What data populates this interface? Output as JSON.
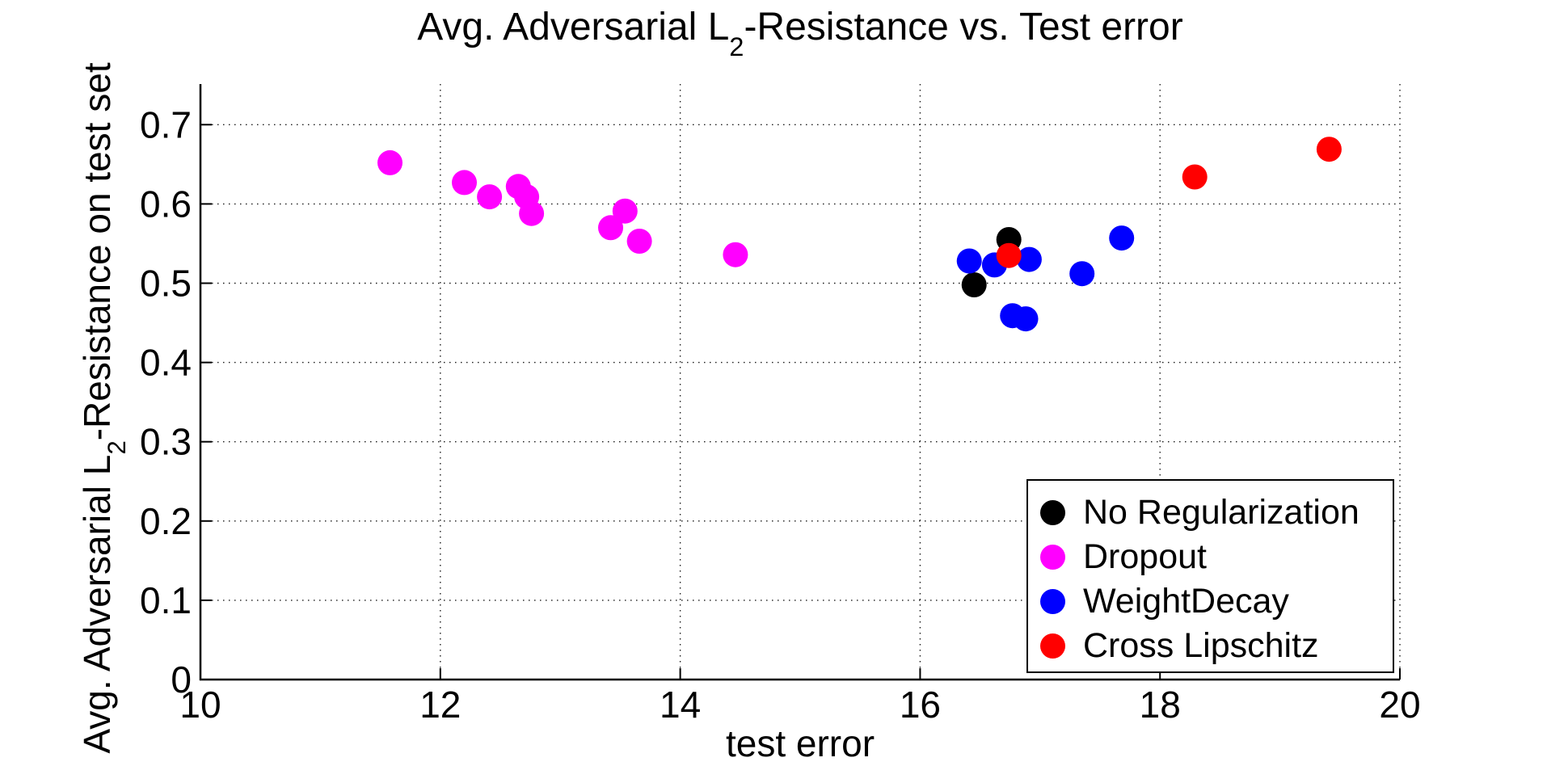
{
  "title": {
    "prefix": "Avg. Adversarial L",
    "sub": "2",
    "suffix": "-Resistance vs. Test error"
  },
  "axes": {
    "xlabel": "test error",
    "ylabel_prefix": "Avg. Adversarial L",
    "ylabel_sub": "2",
    "ylabel_suffix": "-Resistance on test set",
    "xtick_labels": [
      "10",
      "12",
      "14",
      "16",
      "18",
      "20"
    ],
    "ytick_labels": [
      "0",
      "0.1",
      "0.2",
      "0.3",
      "0.4",
      "0.5",
      "0.6",
      "0.7"
    ]
  },
  "chart_data": {
    "type": "scatter",
    "title": "Avg. Adversarial L2-Resistance vs. Test error",
    "xlabel": "test error",
    "ylabel": "Avg. Adversarial L2-Resistance on test set",
    "xlim": [
      10,
      20
    ],
    "ylim": [
      0,
      0.75
    ],
    "xticks": [
      10,
      12,
      14,
      16,
      18,
      20
    ],
    "yticks": [
      0,
      0.1,
      0.2,
      0.3,
      0.4,
      0.5,
      0.6,
      0.7
    ],
    "grid": true,
    "legend_position": "lower right",
    "marker": "filled-circle",
    "series": [
      {
        "name": "No Regularization",
        "color": "#000000",
        "points": [
          [
            16.45,
            0.498
          ],
          [
            16.74,
            0.555
          ]
        ]
      },
      {
        "name": "Dropout",
        "color": "#ff00ff",
        "points": [
          [
            11.58,
            0.652
          ],
          [
            12.2,
            0.627
          ],
          [
            12.41,
            0.609
          ],
          [
            12.65,
            0.622
          ],
          [
            12.72,
            0.609
          ],
          [
            12.76,
            0.588
          ],
          [
            13.42,
            0.57
          ],
          [
            13.54,
            0.591
          ],
          [
            13.66,
            0.553
          ],
          [
            14.46,
            0.536
          ]
        ]
      },
      {
        "name": "WeightDecay",
        "color": "#0000ff",
        "points": [
          [
            16.41,
            0.528
          ],
          [
            16.62,
            0.523
          ],
          [
            16.77,
            0.459
          ],
          [
            16.88,
            0.455
          ],
          [
            16.91,
            0.53
          ],
          [
            17.35,
            0.512
          ],
          [
            17.68,
            0.557
          ]
        ]
      },
      {
        "name": "Cross Lipschitz",
        "color": "#ff0000",
        "points": [
          [
            16.74,
            0.535
          ],
          [
            18.29,
            0.634
          ],
          [
            19.41,
            0.669
          ]
        ]
      }
    ]
  }
}
